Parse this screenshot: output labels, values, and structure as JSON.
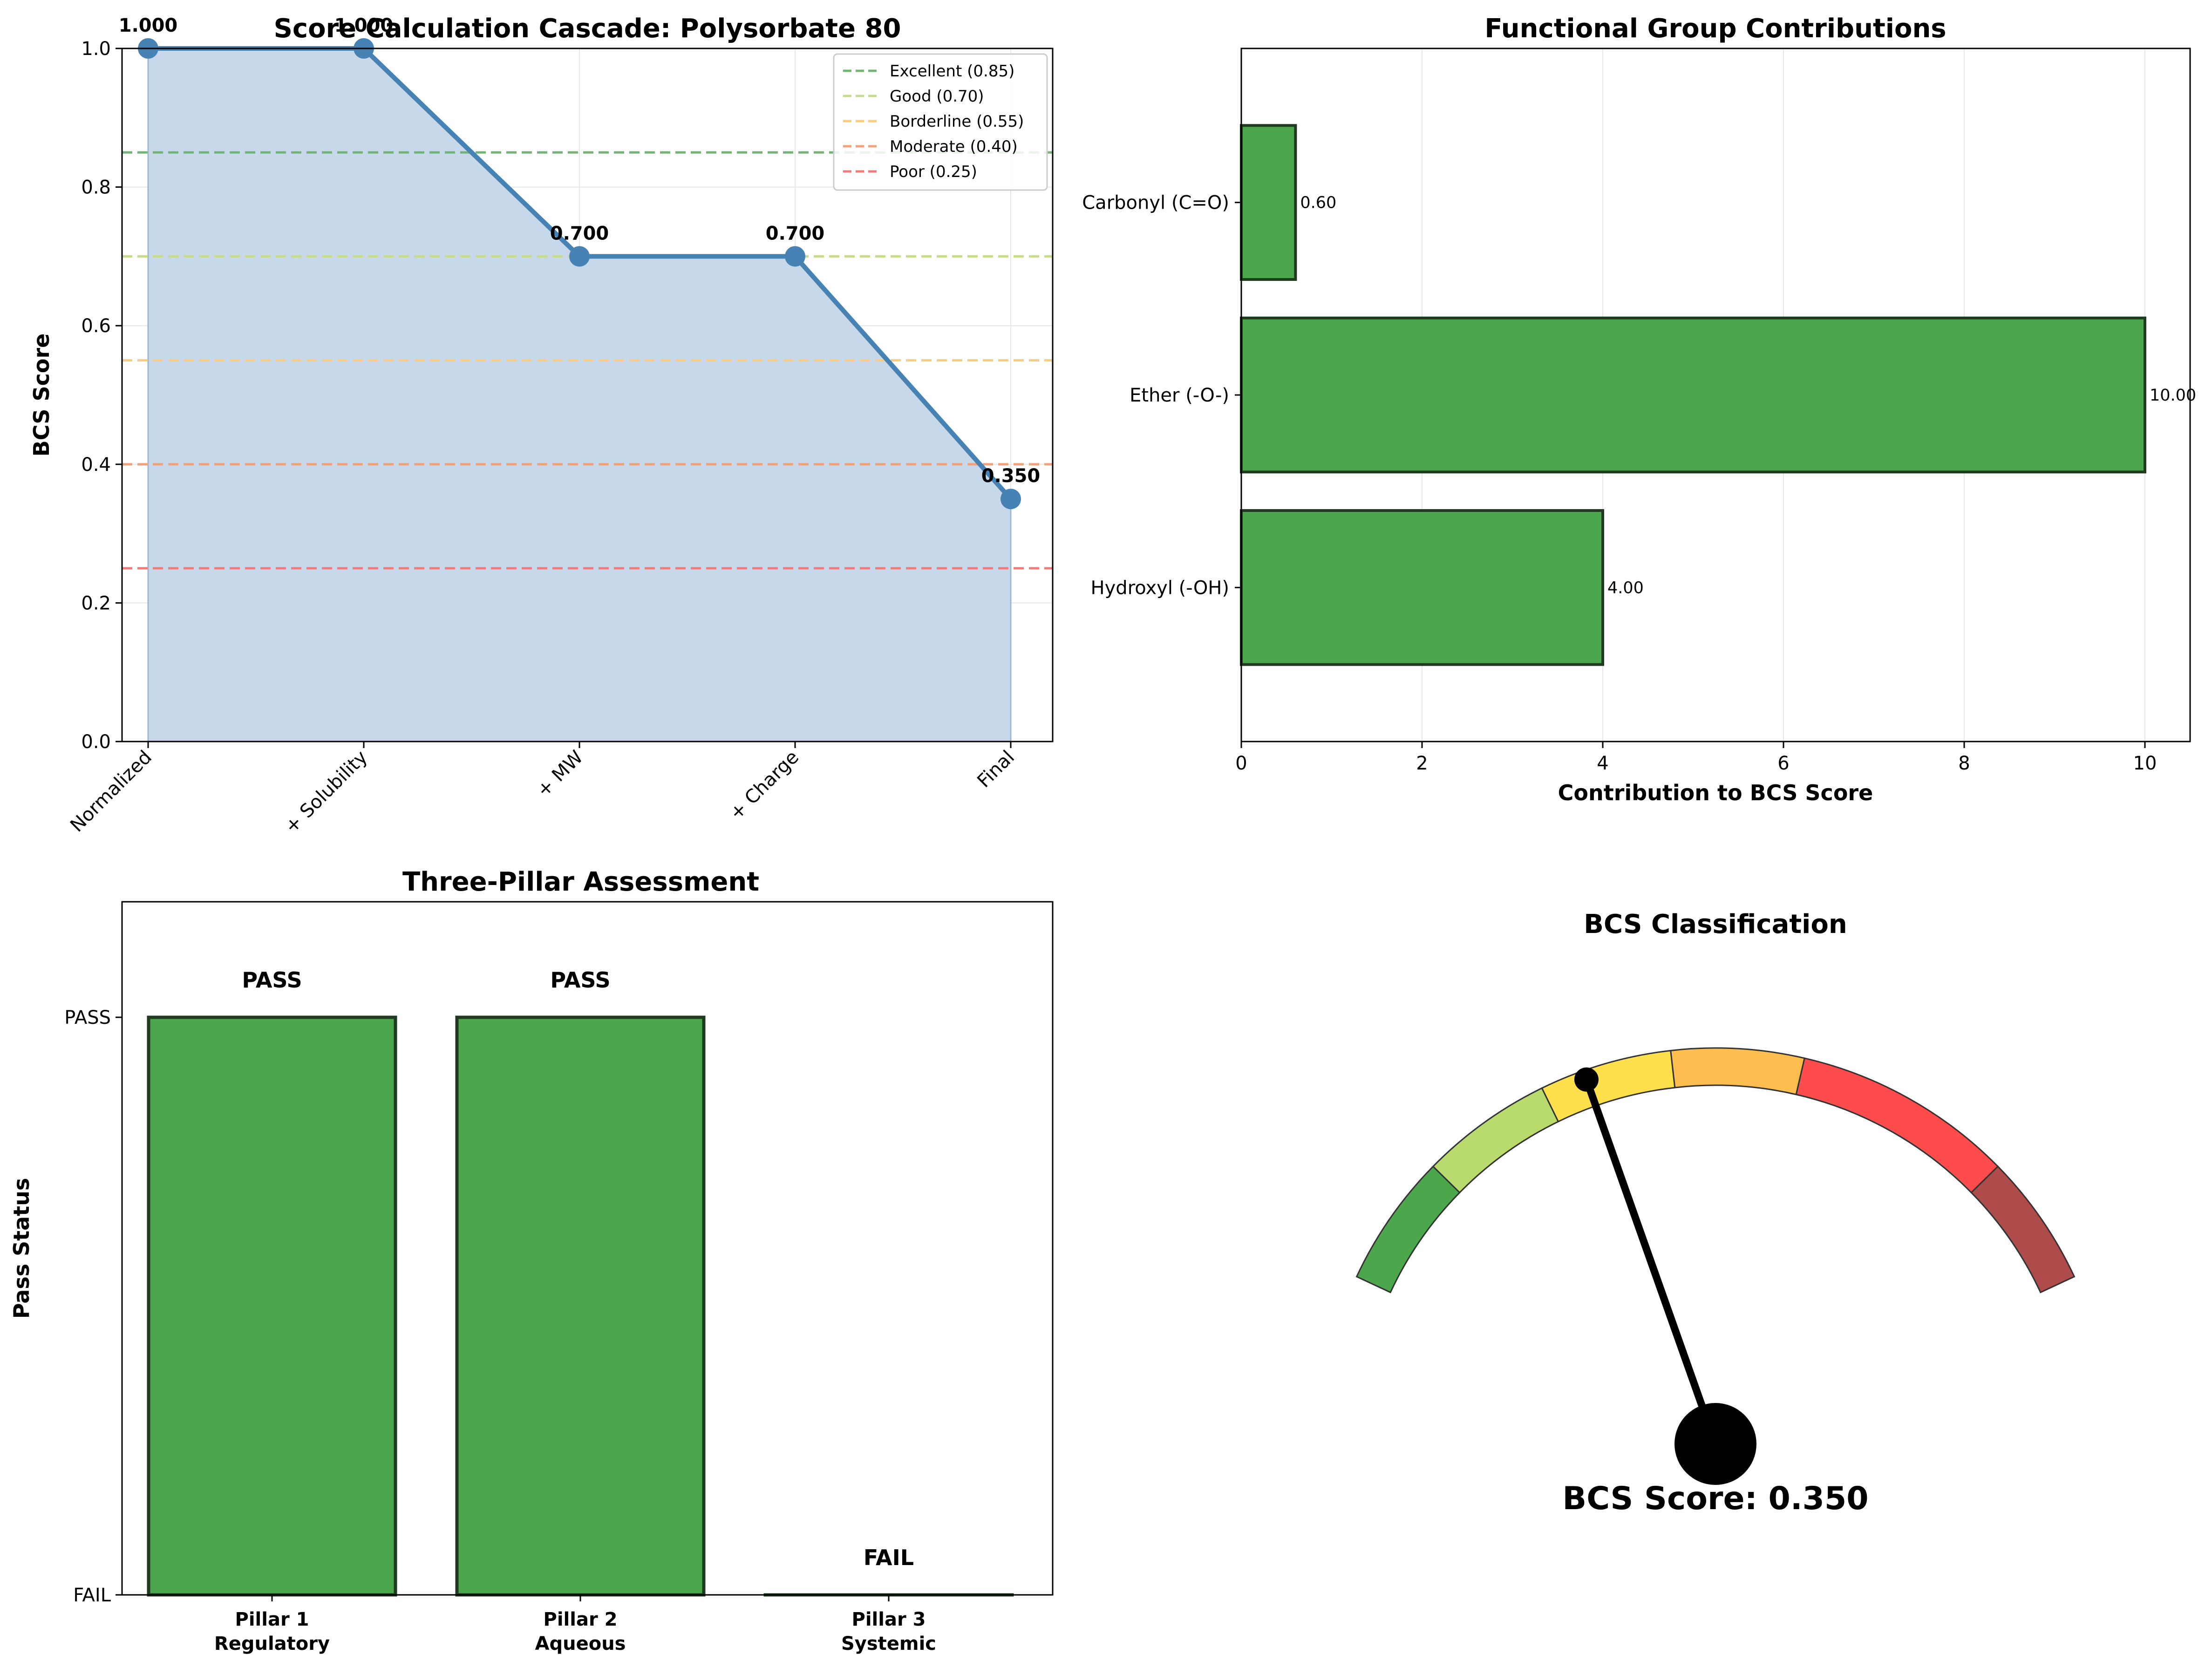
{
  "chart_data": [
    {
      "type": "line",
      "title": "Score Calculation Cascade: Polysorbate 80",
      "xlabel": "",
      "ylabel": "BCS Score",
      "categories": [
        "Normalized",
        "+ Solubility",
        "+ MW",
        "+ Charge",
        "Final"
      ],
      "values": [
        1.0,
        1.0,
        0.7,
        0.7,
        0.35
      ],
      "data_labels": [
        "1.000",
        "1.000",
        "0.700",
        "0.700",
        "0.350"
      ],
      "ylim": [
        0,
        1.0
      ],
      "yticks": [
        "0.0",
        "0.2",
        "0.4",
        "0.6",
        "0.8",
        "1.0"
      ],
      "grid": true,
      "filled_area": true,
      "line_color": "#4682b4",
      "fill_color": "#c6d8e9",
      "legend_position": "top-right",
      "thresholds": [
        {
          "name": "Excellent (0.85)",
          "value": 0.85,
          "color": "#72b472"
        },
        {
          "name": "Good (0.70)",
          "value": 0.7,
          "color": "#c6dc8c"
        },
        {
          "name": "Borderline (0.55)",
          "value": 0.55,
          "color": "#fccc7a"
        },
        {
          "name": "Moderate (0.40)",
          "value": 0.4,
          "color": "#f2a279"
        },
        {
          "name": "Poor (0.25)",
          "value": 0.25,
          "color": "#f47a7a"
        }
      ]
    },
    {
      "type": "bar",
      "orientation": "horizontal",
      "title": "Functional Group Contributions",
      "xlabel": "Contribution to BCS Score",
      "ylabel": "",
      "categories": [
        "Hydroxyl (-OH)",
        "Ether (-O-)",
        "Carbonyl (C=O)"
      ],
      "values": [
        4.0,
        10.0,
        0.6
      ],
      "data_labels": [
        "4.00",
        "10.00",
        "0.60"
      ],
      "xlim": [
        0,
        10.5
      ],
      "xticks": [
        "0",
        "2",
        "4",
        "6",
        "8",
        "10"
      ],
      "grid": true,
      "bar_color": "#4ca64c"
    },
    {
      "type": "bar",
      "title": "Three-Pillar Assessment",
      "xlabel": "",
      "ylabel": "Pass Status",
      "categories": [
        "Pillar 1\nRegulatory",
        "Pillar 2\nAqueous",
        "Pillar 3\nSystemic"
      ],
      "category_lines": [
        [
          "Pillar 1",
          "Regulatory"
        ],
        [
          "Pillar 2",
          "Aqueous"
        ],
        [
          "Pillar 3",
          "Systemic"
        ]
      ],
      "values": [
        1,
        1,
        0
      ],
      "data_labels": [
        "PASS",
        "PASS",
        "FAIL"
      ],
      "yticks": [
        "FAIL",
        "PASS"
      ],
      "ylim": [
        0,
        1.2
      ],
      "bar_color": "#4ca64c"
    },
    {
      "type": "gauge",
      "title": "BCS Classification",
      "value": 0.35,
      "value_label": "BCS Score: 0.350",
      "range": [
        0,
        1
      ],
      "bands": [
        {
          "from": 0.0,
          "to": 0.15,
          "color": "#4ca64c"
        },
        {
          "from": 0.15,
          "to": 0.3,
          "color": "#b9db6d"
        },
        {
          "from": 0.3,
          "to": 0.45,
          "color": "#fde04b"
        },
        {
          "from": 0.45,
          "to": 0.6,
          "color": "#fdbd4f"
        },
        {
          "from": 0.6,
          "to": 0.85,
          "color": "#fe4b4b"
        },
        {
          "from": 0.85,
          "to": 1.0,
          "color": "#ae4b4b"
        }
      ],
      "needle_color": "#000000"
    }
  ]
}
